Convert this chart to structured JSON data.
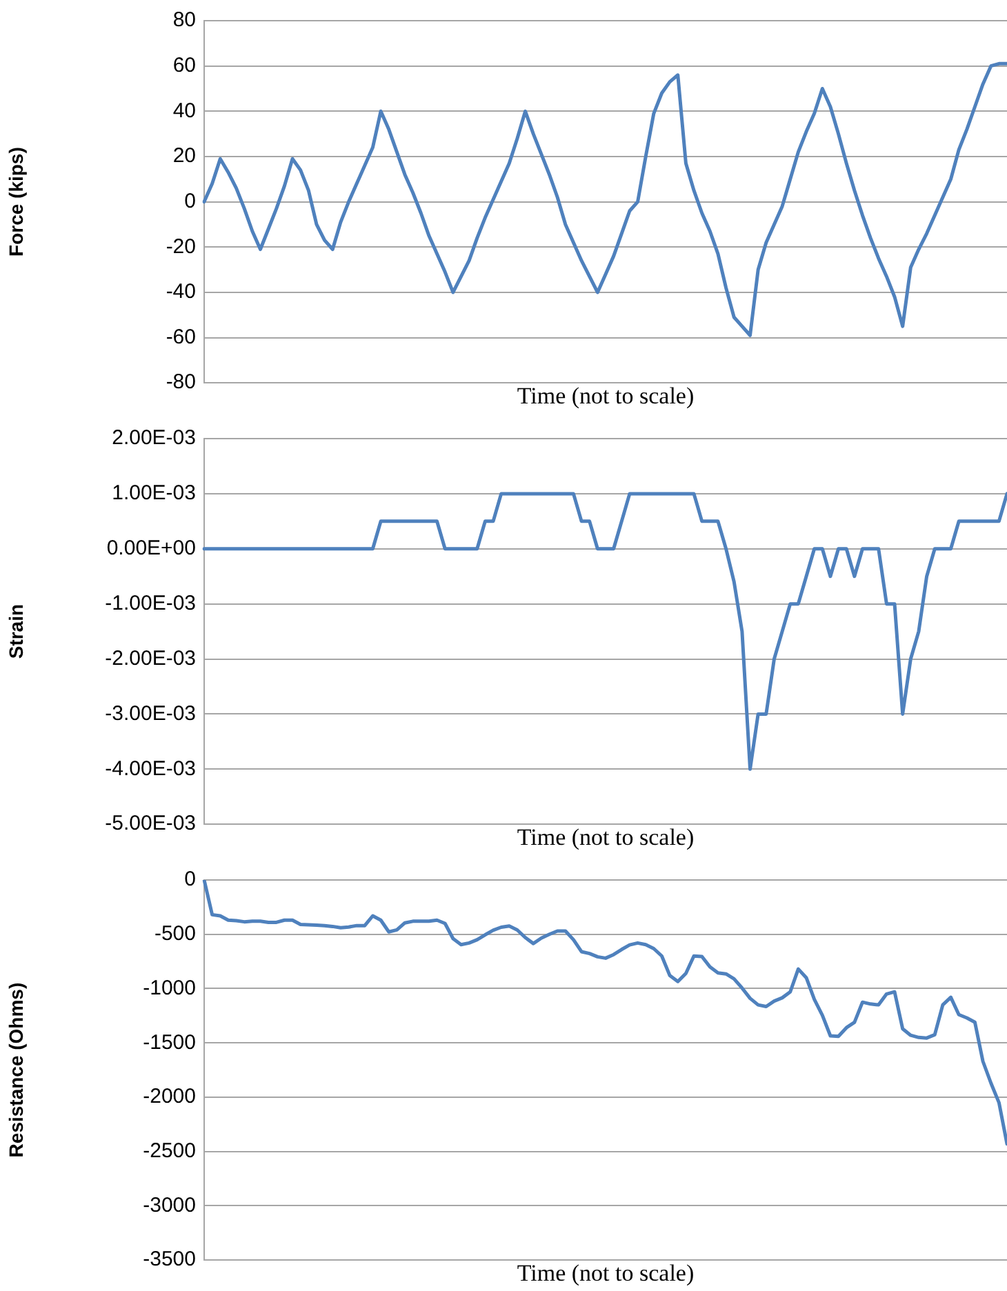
{
  "chart_data": [
    {
      "type": "line",
      "xlabel": "Time (not to scale)",
      "ylabel": "Force (kips)",
      "grid": "y",
      "tick_labels": "y",
      "marker": "none",
      "categories": [
        null,
        null,
        null,
        null,
        null,
        null,
        null,
        null,
        null,
        null,
        null,
        null,
        null,
        null,
        null,
        null,
        null,
        null,
        null,
        null,
        null,
        null,
        null,
        null,
        null,
        null,
        null,
        null,
        null,
        null,
        null,
        null,
        null,
        null,
        null,
        null,
        null,
        null,
        null,
        null,
        null,
        null,
        null,
        null,
        null,
        null,
        null,
        null,
        null,
        null,
        null,
        null,
        null,
        null,
        null,
        null,
        null,
        null,
        null,
        null,
        null,
        null,
        null,
        null,
        null,
        null,
        null,
        null,
        null,
        null,
        null,
        null,
        null,
        null,
        null,
        null,
        null,
        null,
        null,
        null,
        null,
        null,
        null,
        null,
        null,
        null,
        null,
        null,
        null,
        null,
        null,
        null,
        null,
        null,
        null,
        null,
        null,
        null,
        null,
        null,
        null
      ],
      "ylim": [
        -80,
        80
      ],
      "yticks": [
        -80,
        -60,
        -40,
        -20,
        0,
        20,
        40,
        60,
        80
      ],
      "series": [
        {
          "color": "#4f81bd",
          "values": [
            0,
            8,
            19,
            13,
            6,
            -3,
            -13,
            -21,
            -12,
            -3,
            7,
            19,
            14,
            5,
            -10,
            -17,
            -21,
            -9,
            0,
            8,
            16,
            24,
            40,
            32,
            22,
            12,
            4,
            -5,
            -15,
            -23,
            -31,
            -40,
            -33,
            -26,
            -16,
            -7,
            1,
            9,
            17,
            28,
            40,
            30,
            21,
            12,
            2,
            -10,
            -18,
            -26,
            -33,
            -40,
            -32,
            -24,
            -14,
            -4,
            0,
            20,
            39,
            48,
            53,
            56,
            17,
            5,
            -5,
            -13,
            -23,
            -38,
            -51,
            -55,
            -59,
            -30,
            -18,
            -10,
            -2,
            10,
            22,
            31,
            39,
            50,
            42,
            30,
            17,
            5,
            -6,
            -16,
            -25,
            -33,
            -42,
            -55,
            -29,
            -21,
            -14,
            -6,
            2,
            10,
            23,
            32,
            42,
            52,
            60,
            61,
            61
          ]
        }
      ]
    },
    {
      "type": "line",
      "xlabel": "Time (not to scale)",
      "ylabel": "Strain",
      "grid": "y",
      "tick_labels": "y",
      "marker": "none",
      "categories": [
        null,
        null,
        null,
        null,
        null,
        null,
        null,
        null,
        null,
        null,
        null,
        null,
        null,
        null,
        null,
        null,
        null,
        null,
        null,
        null,
        null,
        null,
        null,
        null,
        null,
        null,
        null,
        null,
        null,
        null,
        null,
        null,
        null,
        null,
        null,
        null,
        null,
        null,
        null,
        null,
        null,
        null,
        null,
        null,
        null,
        null,
        null,
        null,
        null,
        null,
        null,
        null,
        null,
        null,
        null,
        null,
        null,
        null,
        null,
        null,
        null,
        null,
        null,
        null,
        null,
        null,
        null,
        null,
        null,
        null,
        null,
        null,
        null,
        null,
        null,
        null,
        null,
        null,
        null,
        null,
        null,
        null,
        null,
        null,
        null,
        null,
        null,
        null,
        null,
        null,
        null,
        null,
        null,
        null,
        null,
        null,
        null,
        null,
        null,
        null,
        null
      ],
      "ylim": [
        -0.005,
        0.002
      ],
      "yticks": [
        {
          "value": -0.005,
          "label": "-5.00E-03"
        },
        {
          "value": -0.004,
          "label": "-4.00E-03"
        },
        {
          "value": -0.003,
          "label": "-3.00E-03"
        },
        {
          "value": -0.002,
          "label": "-2.00E-03"
        },
        {
          "value": -0.001,
          "label": "-1.00E-03"
        },
        {
          "value": 0,
          "label": "0.00E+00"
        },
        {
          "value": 0.001,
          "label": "1.00E-03"
        },
        {
          "value": 0.002,
          "label": "2.00E-03"
        }
      ],
      "series": [
        {
          "color": "#4f81bd",
          "values": [
            0,
            0,
            0,
            0,
            0,
            0,
            0,
            0,
            0,
            0,
            0,
            0,
            0,
            0,
            0,
            0,
            0,
            0,
            0,
            0,
            0,
            0,
            0.0005,
            0.0005,
            0.0005,
            0.0005,
            0.0005,
            0.0005,
            0.0005,
            0.0005,
            0,
            0,
            0,
            0,
            0,
            0.0005,
            0.0005,
            0.001,
            0.001,
            0.001,
            0.001,
            0.001,
            0.001,
            0.001,
            0.001,
            0.001,
            0.001,
            0.0005,
            0.0005,
            0,
            0,
            0,
            0.0005,
            0.001,
            0.001,
            0.001,
            0.001,
            0.001,
            0.001,
            0.001,
            0.001,
            0.001,
            0.0005,
            0.0005,
            0.0005,
            0,
            -0.0006,
            -0.0015,
            -0.004,
            -0.003,
            -0.003,
            -0.002,
            -0.0015,
            -0.001,
            -0.001,
            -0.0005,
            0,
            0,
            -0.0005,
            0,
            0,
            -0.0005,
            0,
            0,
            0,
            -0.001,
            -0.001,
            -0.003,
            -0.002,
            -0.0015,
            -0.0005,
            0,
            0,
            0,
            0.0005,
            0.0005,
            0.0005,
            0.0005,
            0.0005,
            0.0005,
            0.001
          ]
        }
      ]
    },
    {
      "type": "line",
      "xlabel": "Time (not to scale)",
      "ylabel": "Resistance (Ohms)",
      "grid": "y",
      "tick_labels": "y",
      "marker": "none",
      "categories": [
        null,
        null,
        null,
        null,
        null,
        null,
        null,
        null,
        null,
        null,
        null,
        null,
        null,
        null,
        null,
        null,
        null,
        null,
        null,
        null,
        null,
        null,
        null,
        null,
        null,
        null,
        null,
        null,
        null,
        null,
        null,
        null,
        null,
        null,
        null,
        null,
        null,
        null,
        null,
        null,
        null,
        null,
        null,
        null,
        null,
        null,
        null,
        null,
        null,
        null,
        null,
        null,
        null,
        null,
        null,
        null,
        null,
        null,
        null,
        null,
        null,
        null,
        null,
        null,
        null,
        null,
        null,
        null,
        null,
        null,
        null,
        null,
        null,
        null,
        null,
        null,
        null,
        null,
        null,
        null,
        null,
        null,
        null,
        null,
        null,
        null,
        null,
        null,
        null,
        null,
        null,
        null,
        null,
        null,
        null,
        null,
        null,
        null,
        null,
        null,
        null
      ],
      "ylim": [
        -3500,
        0
      ],
      "yticks": [
        -3500,
        -3000,
        -2500,
        -2000,
        -1500,
        -1000,
        -500,
        0
      ],
      "series": [
        {
          "color": "#4f81bd",
          "values": [
            0,
            -320,
            -330,
            -370,
            -375,
            -385,
            -380,
            -380,
            -390,
            -390,
            -370,
            -370,
            -410,
            -413,
            -416,
            -420,
            -428,
            -440,
            -433,
            -420,
            -420,
            -330,
            -370,
            -478,
            -460,
            -395,
            -380,
            -380,
            -380,
            -370,
            -400,
            -540,
            -595,
            -580,
            -550,
            -505,
            -463,
            -435,
            -424,
            -460,
            -530,
            -585,
            -535,
            -500,
            -470,
            -470,
            -550,
            -660,
            -677,
            -707,
            -720,
            -687,
            -640,
            -598,
            -580,
            -595,
            -632,
            -700,
            -880,
            -935,
            -860,
            -700,
            -705,
            -800,
            -855,
            -865,
            -910,
            -995,
            -1090,
            -1150,
            -1165,
            -1115,
            -1085,
            -1030,
            -820,
            -900,
            -1100,
            -1245,
            -1435,
            -1440,
            -1360,
            -1310,
            -1125,
            -1142,
            -1150,
            -1050,
            -1030,
            -1370,
            -1430,
            -1450,
            -1455,
            -1425,
            -1150,
            -1080,
            -1240,
            -1270,
            -1310,
            -1670,
            -1870,
            -2050,
            -2430
          ]
        }
      ]
    }
  ]
}
